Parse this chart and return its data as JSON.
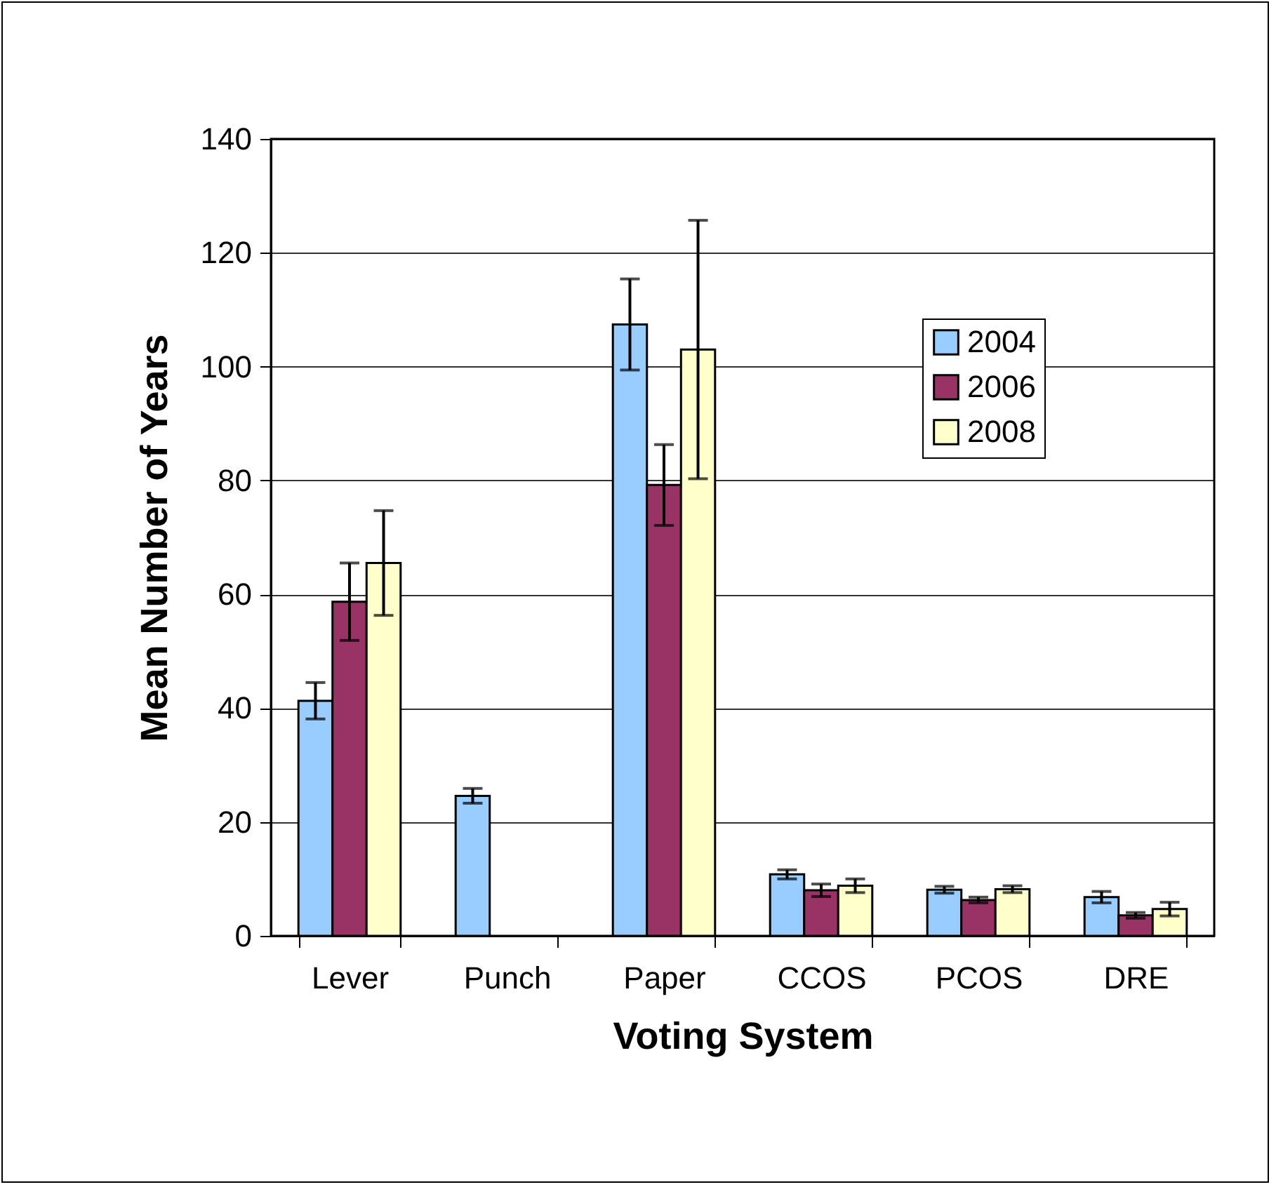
{
  "chart_data": {
    "type": "bar",
    "xlabel": "Voting System",
    "ylabel": "Mean Number of Years",
    "categories": [
      "Lever",
      "Punch",
      "Paper",
      "CCOS",
      "PCOS",
      "DRE"
    ],
    "series": [
      {
        "name": "2004",
        "color": "#99ccff",
        "values": [
          41.3,
          24.6,
          107.4,
          10.8,
          8.1,
          6.8
        ],
        "errors": [
          3.2,
          1.3,
          8.0,
          0.8,
          0.6,
          1.0
        ]
      },
      {
        "name": "2006",
        "color": "#993366",
        "values": [
          58.7,
          null,
          79.2,
          8.0,
          6.3,
          3.6
        ],
        "errors": [
          6.8,
          null,
          7.1,
          1.1,
          0.5,
          0.5
        ]
      },
      {
        "name": "2008",
        "color": "#ffffcc",
        "values": [
          65.5,
          null,
          103.0,
          8.8,
          8.2,
          4.7
        ],
        "errors": [
          9.2,
          null,
          22.7,
          1.2,
          0.6,
          1.2
        ]
      }
    ],
    "ylim": [
      0,
      140
    ],
    "yticks": [
      0,
      20,
      40,
      60,
      80,
      100,
      120,
      140
    ],
    "grid": "y",
    "legend": "top right"
  }
}
